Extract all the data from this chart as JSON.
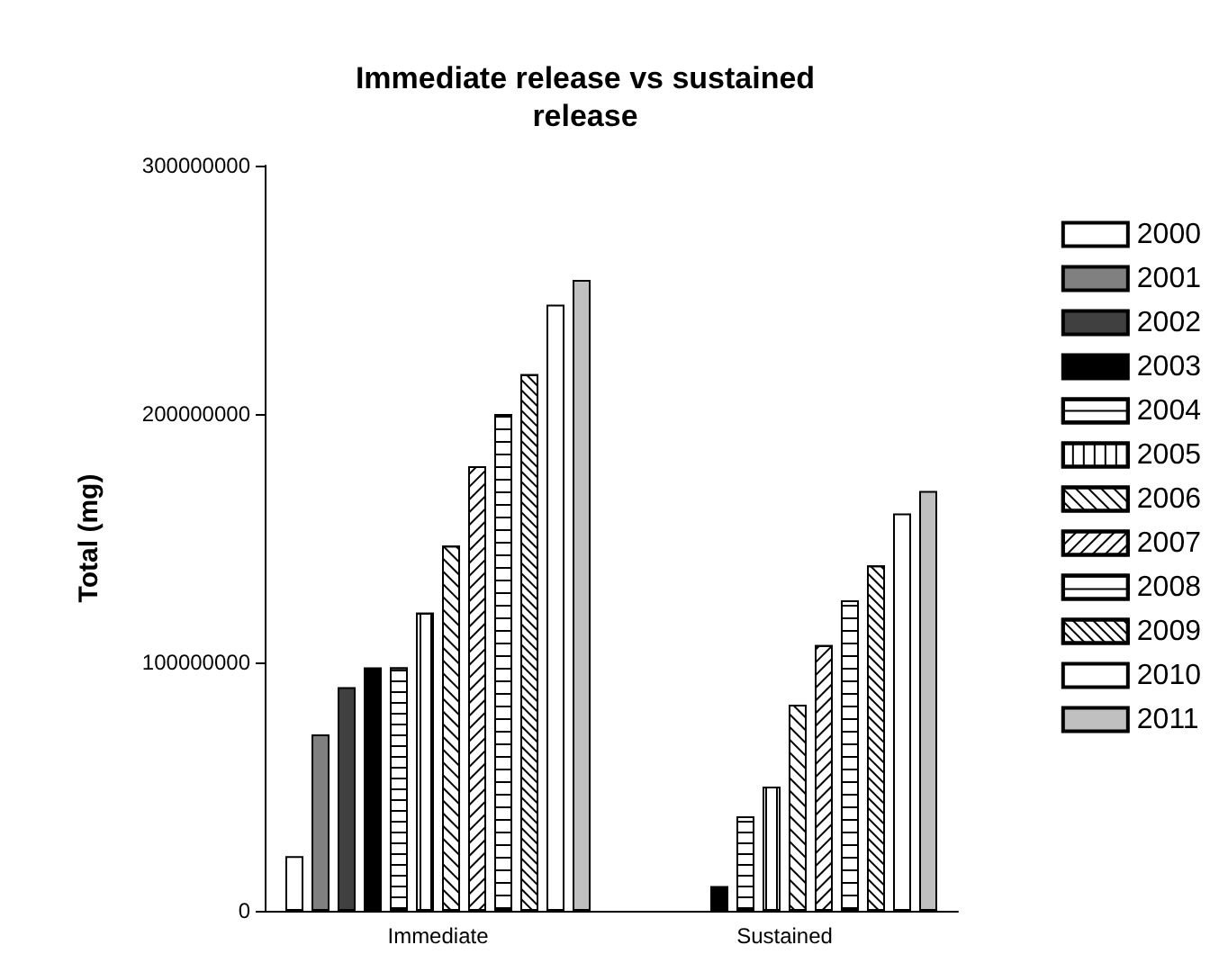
{
  "chart_data": {
    "type": "bar",
    "title": "Immediate release vs sustained\nrelease",
    "ylabel": "Total (mg)",
    "categories": [
      "Immediate",
      "Sustained"
    ],
    "series": [
      {
        "name": "2000",
        "color": "#ffffff",
        "values": [
          22000000,
          null
        ]
      },
      {
        "name": "2001",
        "color": "#808080",
        "values": [
          71000000,
          null
        ]
      },
      {
        "name": "2002",
        "color": "#404040",
        "values": [
          90000000,
          null
        ]
      },
      {
        "name": "2003",
        "color": "#000000",
        "values": [
          98000000,
          10000000
        ]
      },
      {
        "name": "2004",
        "color": "#ffffff",
        "values": [
          98000000,
          38000000
        ]
      },
      {
        "name": "2005",
        "color": "#ffffff",
        "values": [
          120000000,
          50000000
        ]
      },
      {
        "name": "2006",
        "color": "#ffffff",
        "values": [
          147000000,
          83000000
        ]
      },
      {
        "name": "2007",
        "color": "#ffffff",
        "values": [
          179000000,
          107000000
        ]
      },
      {
        "name": "2008",
        "color": "#ffffff",
        "values": [
          200000000,
          125000000
        ]
      },
      {
        "name": "2009",
        "color": "#ffffff",
        "values": [
          216000000,
          139000000
        ]
      },
      {
        "name": "2010",
        "color": "#ffffff",
        "values": [
          244000000,
          160000000
        ]
      },
      {
        "name": "2011",
        "color": "#c0c0c0",
        "values": [
          254000000,
          169000000
        ]
      }
    ],
    "ylim": [
      0,
      300000000
    ],
    "yticks": [
      0,
      100000000,
      200000000,
      300000000
    ],
    "grid": false,
    "legend": "right"
  }
}
